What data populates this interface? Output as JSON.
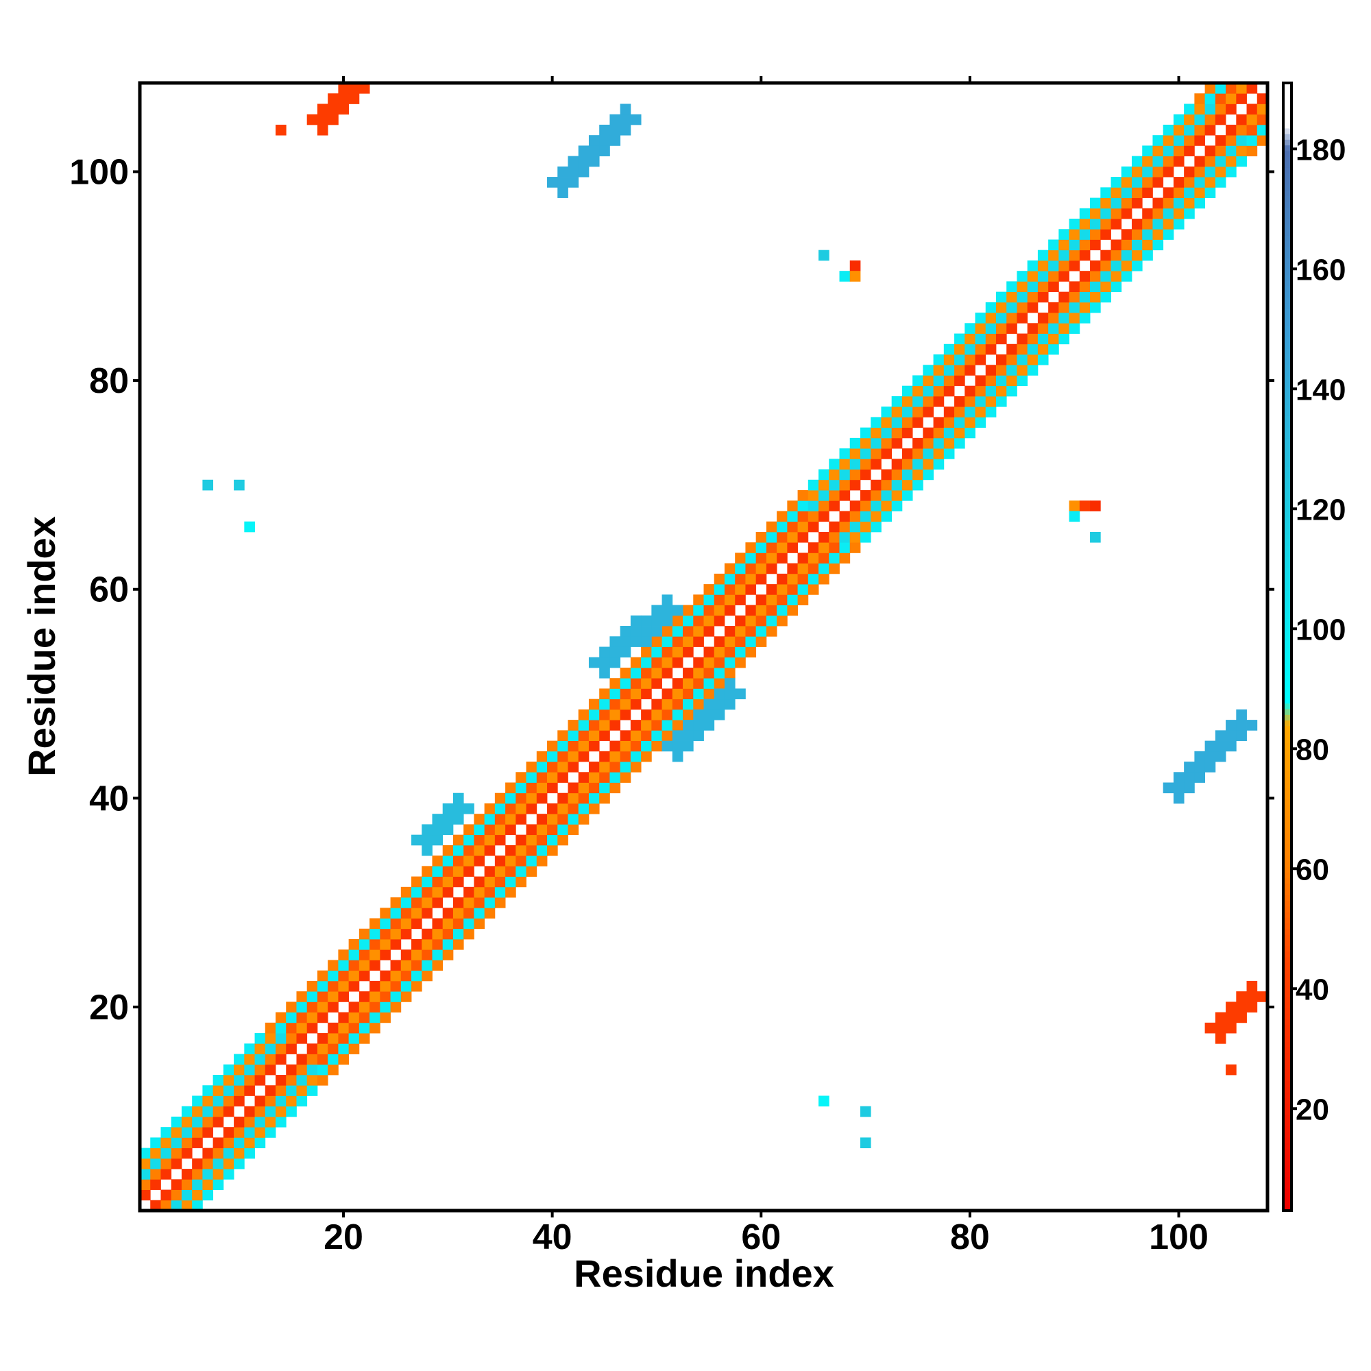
{
  "chart_data": {
    "type": "heatmap",
    "title": "",
    "xlabel": "Residue index",
    "ylabel": "Residue index",
    "xlim": [
      0.5,
      108.5
    ],
    "ylim": [
      0.5,
      108.5
    ],
    "x_ticks": [
      20,
      40,
      60,
      80,
      100
    ],
    "y_ticks": [
      20,
      40,
      60,
      80,
      100
    ],
    "grid": false,
    "colorbar": {
      "position": "right",
      "range": [
        3,
        191
      ],
      "ticks": [
        20,
        40,
        60,
        80,
        100,
        120,
        140,
        160,
        180
      ],
      "color_stops": [
        {
          "value": 3,
          "color": "#ee0000"
        },
        {
          "value": 45,
          "color": "#ff4400"
        },
        {
          "value": 60,
          "color": "#ff7f00"
        },
        {
          "value": 84,
          "color": "#ffa800"
        },
        {
          "value": 88,
          "color": "#00ffff"
        },
        {
          "value": 120,
          "color": "#1ecbe1"
        },
        {
          "value": 150,
          "color": "#3b9dd6"
        },
        {
          "value": 180,
          "color": "#4d6fb0"
        },
        {
          "value": 184,
          "color": "#ffffff"
        }
      ]
    },
    "diagonal_band": {
      "residue_range": [
        1,
        108
      ],
      "max_offset": 5,
      "offset_values": {
        "1": 35,
        "2": 70,
        "3": 50,
        "4": 100,
        "5": 60
      },
      "helix_segments": [
        [
          1,
          17
        ],
        [
          65,
          106
        ]
      ],
      "helix_offset_values": {
        "1": 35,
        "2": 60,
        "3": 110,
        "4": 70,
        "5": 100
      }
    },
    "contact_segments": [
      {
        "i": [
          28,
          31
        ],
        "j": [
          36,
          39
        ],
        "value": 130
      },
      {
        "i": [
          29,
          33
        ],
        "j": [
          31,
          35
        ],
        "value": 135
      },
      {
        "i": [
          41,
          47
        ],
        "j": [
          99,
          105
        ],
        "value": 140
      },
      {
        "i": [
          45,
          51
        ],
        "j": [
          53,
          58
        ],
        "value": 135
      },
      {
        "i": [
          52,
          57
        ],
        "j": [
          45,
          50
        ],
        "value": 135
      },
      {
        "i": [
          100,
          106
        ],
        "j": [
          41,
          47
        ],
        "value": 140
      },
      {
        "i": [
          18,
          21
        ],
        "j": [
          105,
          108
        ],
        "value": 40
      },
      {
        "i": [
          104,
          107
        ],
        "j": [
          18,
          21
        ],
        "value": 40
      }
    ],
    "contact_points": [
      {
        "x": 14,
        "y": 104,
        "value": 40
      },
      {
        "x": 105,
        "y": 14,
        "value": 40
      },
      {
        "x": 7,
        "y": 70,
        "value": 120
      },
      {
        "x": 10,
        "y": 70,
        "value": 120
      },
      {
        "x": 11,
        "y": 66,
        "value": 95
      },
      {
        "x": 66,
        "y": 92,
        "value": 120
      },
      {
        "x": 68,
        "y": 90,
        "value": 100
      },
      {
        "x": 69,
        "y": 91,
        "value": 30
      },
      {
        "x": 69,
        "y": 90,
        "value": 70
      },
      {
        "x": 90,
        "y": 68,
        "value": 70
      },
      {
        "x": 91,
        "y": 68,
        "value": 40
      },
      {
        "x": 92,
        "y": 68,
        "value": 30
      },
      {
        "x": 90,
        "y": 67,
        "value": 100
      },
      {
        "x": 92,
        "y": 65,
        "value": 120
      },
      {
        "x": 66,
        "y": 11,
        "value": 95
      },
      {
        "x": 70,
        "y": 10,
        "value": 120
      },
      {
        "x": 70,
        "y": 7,
        "value": 120
      }
    ]
  }
}
